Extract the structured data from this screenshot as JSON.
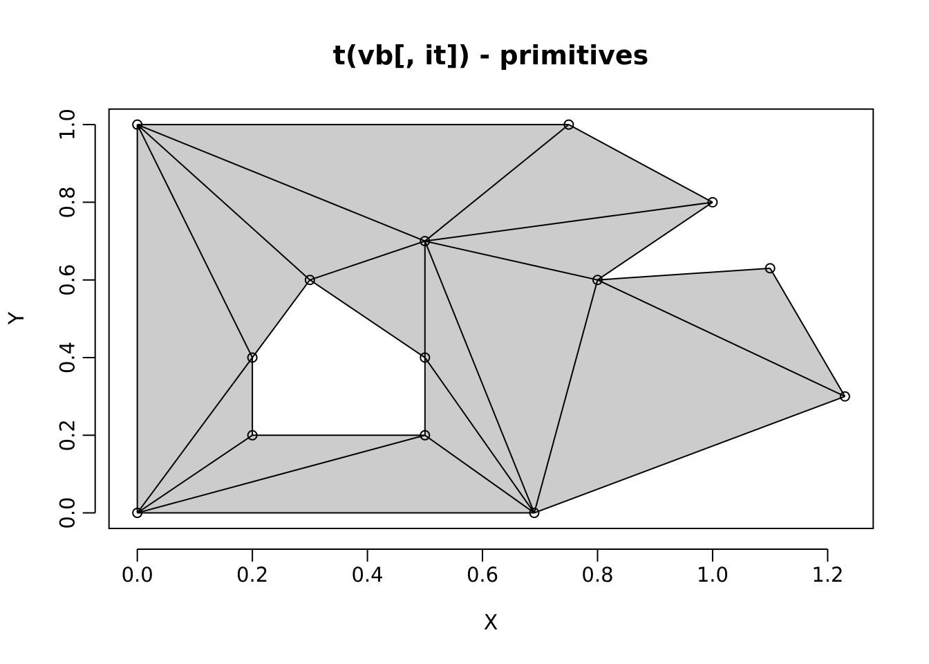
{
  "chart_data": {
    "type": "scatter",
    "title": "t(vb[, it]) - primitives",
    "xlabel": "X",
    "ylabel": "Y",
    "xlim": [
      -0.0492,
      1.2792
    ],
    "ylim": [
      -0.04,
      1.04
    ],
    "x_ticks": [
      0.0,
      0.2,
      0.4,
      0.6,
      0.8,
      1.0,
      1.2
    ],
    "x_tick_labels": [
      "0.0",
      "0.2",
      "0.4",
      "0.6",
      "0.8",
      "1.0",
      "1.2"
    ],
    "y_ticks": [
      0.0,
      0.2,
      0.4,
      0.6,
      0.8,
      1.0
    ],
    "y_tick_labels": [
      "0.0",
      "0.2",
      "0.4",
      "0.6",
      "0.8",
      "1.0"
    ],
    "grid": false,
    "fill_color": "#cccccc",
    "line_color": "#000000",
    "points": [
      {
        "x": 0.0,
        "y": 0.0
      },
      {
        "x": 0.69,
        "y": 0.0
      },
      {
        "x": 1.23,
        "y": 0.3
      },
      {
        "x": 1.1,
        "y": 0.63
      },
      {
        "x": 0.8,
        "y": 0.6
      },
      {
        "x": 1.0,
        "y": 0.8
      },
      {
        "x": 0.75,
        "y": 1.0
      },
      {
        "x": 0.5,
        "y": 0.7
      },
      {
        "x": 0.0,
        "y": 1.0
      },
      {
        "x": 0.2,
        "y": 0.2
      },
      {
        "x": 0.5,
        "y": 0.2
      },
      {
        "x": 0.5,
        "y": 0.4
      },
      {
        "x": 0.3,
        "y": 0.6
      },
      {
        "x": 0.2,
        "y": 0.4
      }
    ],
    "triangles": [
      [
        0,
        8,
        13
      ],
      [
        0,
        13,
        9
      ],
      [
        0,
        9,
        10
      ],
      [
        0,
        10,
        1
      ],
      [
        10,
        11,
        1
      ],
      [
        11,
        7,
        1
      ],
      [
        7,
        4,
        1
      ],
      [
        4,
        2,
        1
      ],
      [
        4,
        3,
        2
      ],
      [
        7,
        5,
        4
      ],
      [
        7,
        6,
        5
      ],
      [
        8,
        6,
        7
      ],
      [
        8,
        7,
        12
      ],
      [
        8,
        12,
        13
      ],
      [
        12,
        7,
        11
      ]
    ]
  }
}
